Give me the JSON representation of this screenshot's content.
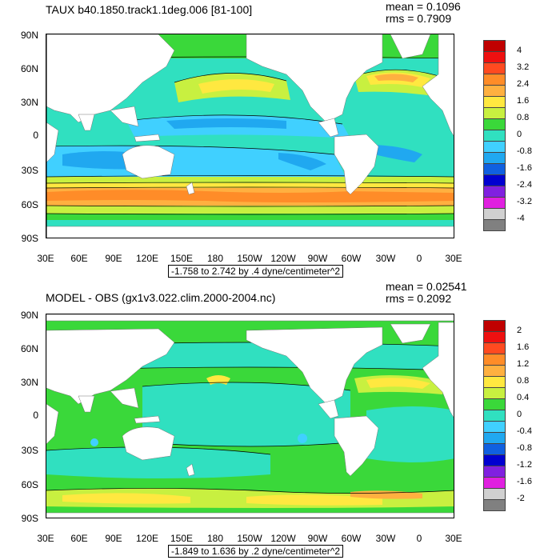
{
  "panels": [
    {
      "title": "TAUX b40.1850.track1.1deg.006 [81-100]",
      "mean": "mean = 0.1096",
      "rms": "rms = 0.7909",
      "info": "-1.758 to 2.742 by .4 dyne/centimeter^2",
      "legend_labels": [
        "4",
        "3.2",
        "2.4",
        "1.6",
        "0.8",
        "0",
        "-0.8",
        "-1.6",
        "-2.4",
        "-3.2",
        "-4"
      ],
      "legend_colors": [
        "#c00000",
        "#ee1010",
        "#ff4a20",
        "#ff8c28",
        "#ffb040",
        "#ffe840",
        "#c8f040",
        "#3ad83a",
        "#30e0c0",
        "#40d0ff",
        "#20a8f0",
        "#1060e0",
        "#0000d0",
        "#8020e0",
        "#e020e0",
        "#d0d0d0",
        "#808080"
      ]
    },
    {
      "title": "MODEL - OBS (gx1v3.022.clim.2000-2004.nc)",
      "mean": "mean = 0.02541",
      "rms": "rms = 0.2092",
      "info": "-1.849 to 1.636 by .2 dyne/centimeter^2",
      "legend_labels": [
        "2",
        "1.6",
        "1.2",
        "0.8",
        "0.4",
        "0",
        "-0.4",
        "-0.8",
        "-1.2",
        "-1.6",
        "-2"
      ],
      "legend_colors": [
        "#c00000",
        "#ee1010",
        "#ff4a20",
        "#ff8c28",
        "#ffb040",
        "#ffe840",
        "#c8f040",
        "#3ad83a",
        "#30e0c0",
        "#40d0ff",
        "#20a8f0",
        "#1060e0",
        "#0000d0",
        "#8020e0",
        "#e020e0",
        "#d0d0d0",
        "#808080"
      ]
    }
  ],
  "lat_labels": [
    "90N",
    "60N",
    "30N",
    "0",
    "30S",
    "60S",
    "90S"
  ],
  "lon_labels": [
    "30E",
    "60E",
    "90E",
    "120E",
    "150E",
    "180",
    "150W",
    "120W",
    "90W",
    "60W",
    "30W",
    "0",
    "30E"
  ]
}
